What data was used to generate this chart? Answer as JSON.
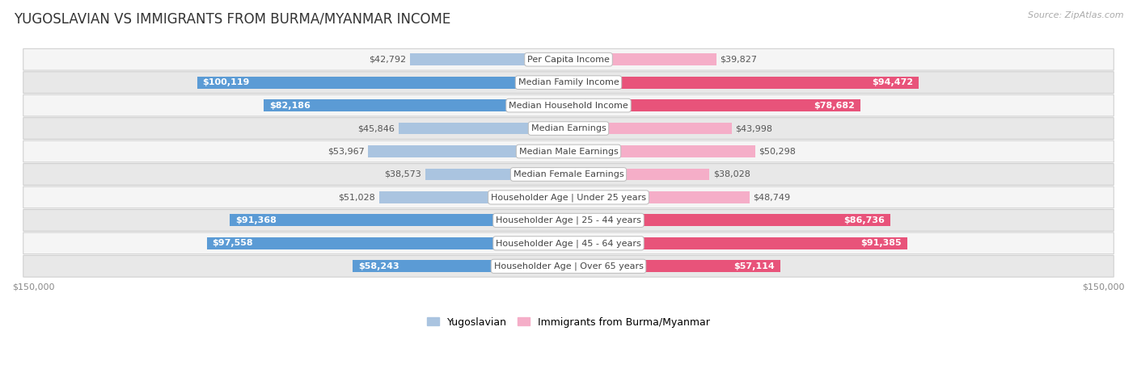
{
  "title": "YUGOSLAVIAN VS IMMIGRANTS FROM BURMA/MYANMAR INCOME",
  "source": "Source: ZipAtlas.com",
  "categories": [
    "Per Capita Income",
    "Median Family Income",
    "Median Household Income",
    "Median Earnings",
    "Median Male Earnings",
    "Median Female Earnings",
    "Householder Age | Under 25 years",
    "Householder Age | 25 - 44 years",
    "Householder Age | 45 - 64 years",
    "Householder Age | Over 65 years"
  ],
  "yugoslavian_values": [
    42792,
    100119,
    82186,
    45846,
    53967,
    38573,
    51028,
    91368,
    97558,
    58243
  ],
  "burma_values": [
    39827,
    94472,
    78682,
    43998,
    50298,
    38028,
    48749,
    86736,
    91385,
    57114
  ],
  "yugoslavian_labels": [
    "$42,792",
    "$100,119",
    "$82,186",
    "$45,846",
    "$53,967",
    "$38,573",
    "$51,028",
    "$91,368",
    "$97,558",
    "$58,243"
  ],
  "burma_labels": [
    "$39,827",
    "$94,472",
    "$78,682",
    "$43,998",
    "$50,298",
    "$38,028",
    "$48,749",
    "$86,736",
    "$91,385",
    "$57,114"
  ],
  "max_value": 150000,
  "yug_color_light": "#aac4e0",
  "yug_color_dark": "#5b9bd5",
  "burma_color_light": "#f5aec8",
  "burma_color_dark": "#e8537a",
  "background_color": "#ffffff",
  "row_bg_light": "#f5f5f5",
  "row_bg_dark": "#e8e8e8",
  "row_border": "#d0d0d0",
  "legend_yug": "Yugoslavian",
  "legend_burma": "Immigrants from Burma/Myanmar",
  "xlabel_left": "$150,000",
  "xlabel_right": "$150,000",
  "inside_threshold": 55000,
  "title_fontsize": 12,
  "label_fontsize": 8,
  "cat_fontsize": 8
}
